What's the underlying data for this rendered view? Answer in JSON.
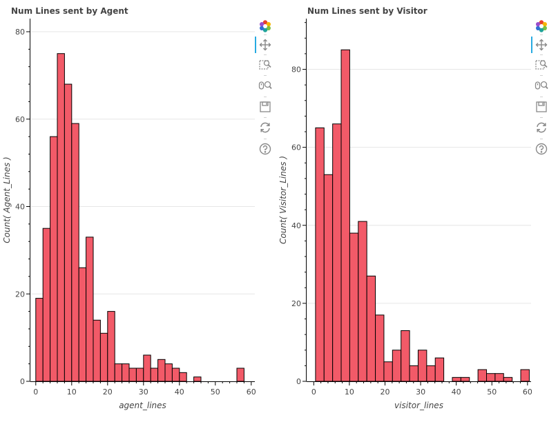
{
  "theme": {
    "bar_fill": "#f25a68",
    "bar_stroke": "#000000",
    "grid": "#e6e6e6",
    "axis": "#444444",
    "title_color": "#444444",
    "toolbar_active": "#26aae1"
  },
  "toolbar": {
    "items": [
      {
        "name": "bokeh-logo-icon",
        "interactable": true
      },
      {
        "name": "pan-tool-icon",
        "interactable": true,
        "active": true
      },
      {
        "name": "box-zoom-tool-icon",
        "interactable": true
      },
      {
        "name": "wheel-zoom-tool-icon",
        "interactable": true
      },
      {
        "name": "save-tool-icon",
        "interactable": true
      },
      {
        "name": "reset-tool-icon",
        "interactable": true
      },
      {
        "name": "help-tool-icon",
        "interactable": true
      }
    ]
  },
  "chart_data": [
    {
      "type": "bar",
      "title": "Num Lines sent by Agent",
      "xlabel": "agent_lines",
      "ylabel": "Count( Agent_Lines )",
      "xlim": [
        -1.5,
        61
      ],
      "ylim": [
        0,
        83
      ],
      "xticks": [
        0,
        10,
        20,
        30,
        40,
        50,
        60
      ],
      "yticks": [
        0,
        20,
        40,
        60,
        80
      ],
      "grid": true,
      "bin_width": 2,
      "bins": [
        {
          "x0": 0,
          "count": 19
        },
        {
          "x0": 2,
          "count": 35
        },
        {
          "x0": 4,
          "count": 56
        },
        {
          "x0": 6,
          "count": 75
        },
        {
          "x0": 8,
          "count": 68
        },
        {
          "x0": 10,
          "count": 59
        },
        {
          "x0": 12,
          "count": 26
        },
        {
          "x0": 14,
          "count": 33
        },
        {
          "x0": 16,
          "count": 14
        },
        {
          "x0": 18,
          "count": 11
        },
        {
          "x0": 20,
          "count": 16
        },
        {
          "x0": 22,
          "count": 4
        },
        {
          "x0": 24,
          "count": 4
        },
        {
          "x0": 26,
          "count": 3
        },
        {
          "x0": 28,
          "count": 3
        },
        {
          "x0": 30,
          "count": 6
        },
        {
          "x0": 32,
          "count": 3
        },
        {
          "x0": 34,
          "count": 5
        },
        {
          "x0": 36,
          "count": 4
        },
        {
          "x0": 38,
          "count": 3
        },
        {
          "x0": 40,
          "count": 2
        },
        {
          "x0": 42,
          "count": 0
        },
        {
          "x0": 44,
          "count": 1
        },
        {
          "x0": 46,
          "count": 0
        },
        {
          "x0": 48,
          "count": 0
        },
        {
          "x0": 50,
          "count": 0
        },
        {
          "x0": 52,
          "count": 0
        },
        {
          "x0": 54,
          "count": 0
        },
        {
          "x0": 56,
          "count": 3
        }
      ]
    },
    {
      "type": "bar",
      "title": "Num Lines sent by Visitor",
      "xlabel": "visitor_lines",
      "ylabel": "Count( Visitor_Lines )",
      "xlim": [
        -2,
        61
      ],
      "ylim": [
        0,
        93
      ],
      "xticks": [
        0,
        10,
        20,
        30,
        40,
        50,
        60
      ],
      "yticks": [
        0,
        20,
        40,
        60,
        80
      ],
      "grid": true,
      "bin_width": 2.4,
      "bins": [
        {
          "x0": 0.5,
          "count": 65
        },
        {
          "x0": 2.9,
          "count": 53
        },
        {
          "x0": 5.3,
          "count": 66
        },
        {
          "x0": 7.7,
          "count": 85
        },
        {
          "x0": 10.1,
          "count": 38
        },
        {
          "x0": 12.5,
          "count": 41
        },
        {
          "x0": 14.9,
          "count": 27
        },
        {
          "x0": 17.3,
          "count": 17
        },
        {
          "x0": 19.7,
          "count": 5
        },
        {
          "x0": 22.1,
          "count": 8
        },
        {
          "x0": 24.5,
          "count": 13
        },
        {
          "x0": 26.9,
          "count": 4
        },
        {
          "x0": 29.3,
          "count": 8
        },
        {
          "x0": 31.7,
          "count": 4
        },
        {
          "x0": 34.1,
          "count": 6
        },
        {
          "x0": 36.5,
          "count": 0
        },
        {
          "x0": 38.9,
          "count": 1
        },
        {
          "x0": 41.3,
          "count": 1
        },
        {
          "x0": 43.7,
          "count": 0
        },
        {
          "x0": 46.1,
          "count": 3
        },
        {
          "x0": 48.5,
          "count": 2
        },
        {
          "x0": 50.9,
          "count": 2
        },
        {
          "x0": 53.3,
          "count": 1
        },
        {
          "x0": 55.7,
          "count": 0
        },
        {
          "x0": 58.1,
          "count": 3
        }
      ]
    }
  ]
}
